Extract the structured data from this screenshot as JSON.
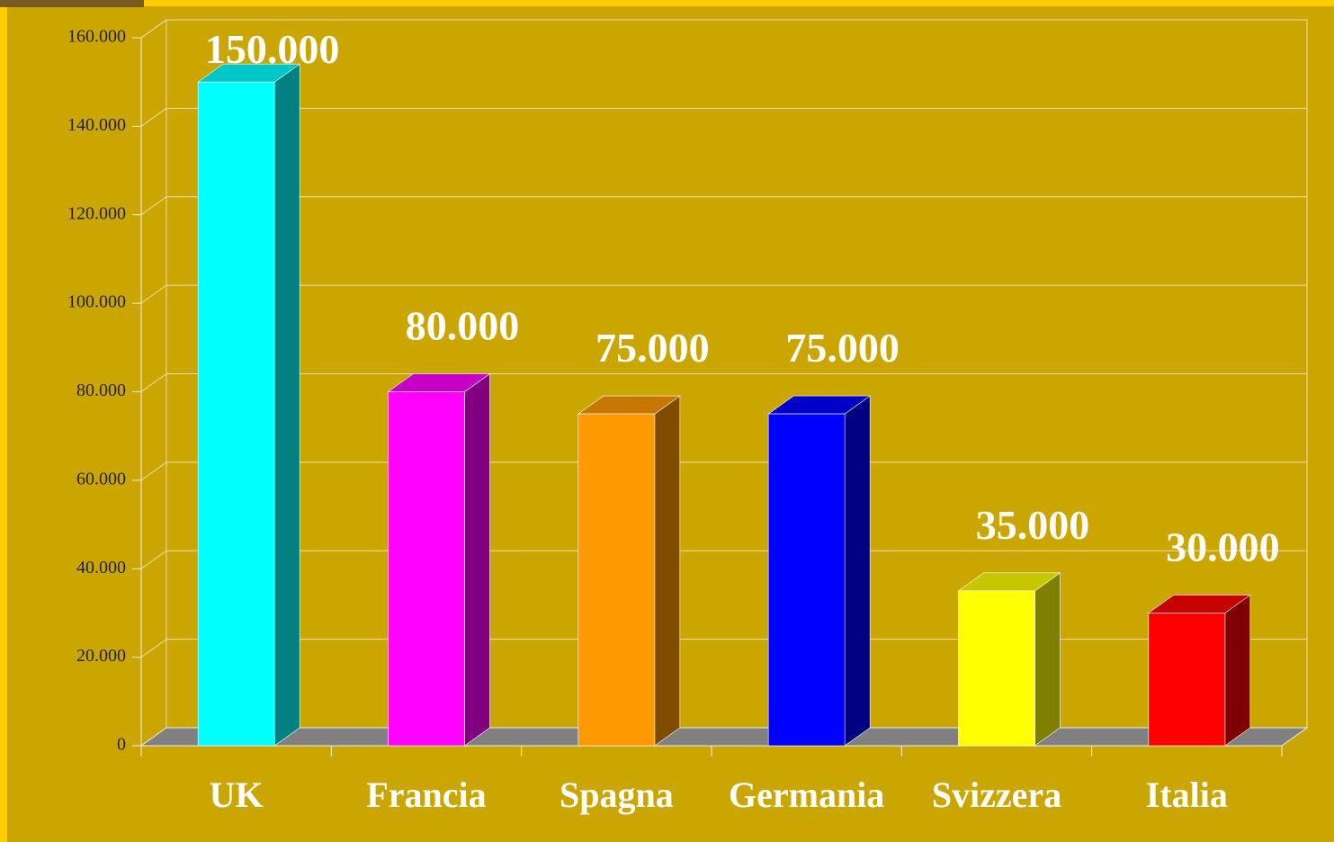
{
  "chart_data": {
    "type": "bar3d",
    "categories": [
      "UK",
      "Francia",
      "Spagna",
      "Germania",
      "Svizzera",
      "Italia"
    ],
    "values": [
      150000,
      80000,
      75000,
      75000,
      35000,
      30000
    ],
    "value_labels": [
      "150.000",
      "80.000",
      "75.000",
      "75.000",
      "35.000",
      "30.000"
    ],
    "colors": [
      "#00ffff",
      "#ff00ff",
      "#ff9900",
      "#0000ff",
      "#ffff00",
      "#ff0000"
    ],
    "ylim": [
      0,
      160000
    ],
    "yticks": [
      0,
      {
        "value": 20000,
        "label": "20.000"
      },
      {
        "value": 40000,
        "label": "40.000"
      },
      {
        "value": 60000,
        "label": "60.000"
      },
      {
        "value": 80000,
        "label": "80.000"
      },
      {
        "value": 100000,
        "label": "100.000"
      },
      {
        "value": 120000,
        "label": "120.000"
      },
      {
        "value": 140000,
        "label": "140.000"
      },
      {
        "value": 160000,
        "label": "160.000"
      }
    ],
    "grid": true
  }
}
